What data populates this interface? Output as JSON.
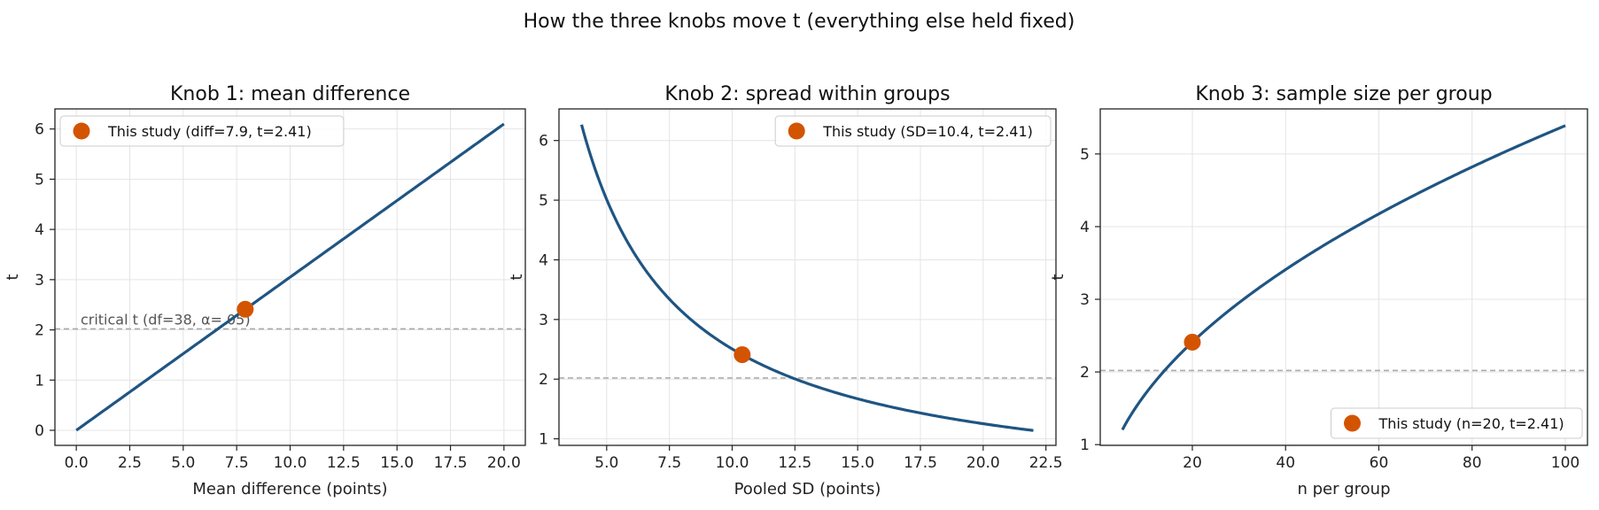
{
  "figure": {
    "suptitle": "How the three knobs move t (everything else held fixed)"
  },
  "colors": {
    "line": "#1f5582",
    "marker": "#d35400",
    "critical_line": "#aaaaaa",
    "grid": "#e4e4e4"
  },
  "chart_data": [
    {
      "type": "line",
      "title": "Knob 1: mean difference",
      "xlabel": "Mean difference (points)",
      "ylabel": "t",
      "xlim": [
        -1,
        21
      ],
      "ylim": [
        -0.3,
        6.4
      ],
      "xticks": [
        0,
        2.5,
        5,
        7.5,
        10,
        12.5,
        15,
        17.5,
        20
      ],
      "xtick_labels": [
        "0.0",
        "2.5",
        "5.0",
        "7.5",
        "10.0",
        "12.5",
        "15.0",
        "17.5",
        "20.0"
      ],
      "yticks": [
        0,
        1,
        2,
        3,
        4,
        5,
        6
      ],
      "ytick_labels": [
        "0",
        "1",
        "2",
        "3",
        "4",
        "5",
        "6"
      ],
      "grid": true,
      "curve": "t = diff * 0.305",
      "series": [
        {
          "x": [
            0,
            2.5,
            5,
            7.5,
            10,
            12.5,
            15,
            17.5,
            20
          ],
          "y": [
            0,
            0.76,
            1.53,
            2.29,
            3.05,
            3.81,
            4.58,
            5.34,
            6.1
          ]
        }
      ],
      "critical_t": 2.02,
      "critical_label": "critical t (df=38, α=.05)",
      "study_point": {
        "x": 7.9,
        "y": 2.41,
        "label": "This study (diff=7.9, t=2.41)"
      },
      "legend_position": "upper left"
    },
    {
      "type": "line",
      "title": "Knob 2: spread within groups",
      "xlabel": "Pooled SD (points)",
      "ylabel": "t",
      "xlim": [
        3.1,
        22.9
      ],
      "ylim": [
        0.89,
        6.53
      ],
      "xticks": [
        5,
        7.5,
        10,
        12.5,
        15,
        17.5,
        20,
        22.5
      ],
      "xtick_labels": [
        "5.0",
        "7.5",
        "10.0",
        "12.5",
        "15.0",
        "17.5",
        "20.0",
        "22.5"
      ],
      "yticks": [
        1,
        2,
        3,
        4,
        5,
        6
      ],
      "ytick_labels": [
        "1",
        "2",
        "3",
        "4",
        "5",
        "6"
      ],
      "grid": true,
      "curve": "t = 25.06 / SD",
      "series": [
        {
          "x": [
            4,
            5,
            6,
            7.5,
            10,
            12.5,
            15,
            17.5,
            20,
            22
          ],
          "y": [
            6.27,
            5.01,
            4.18,
            3.34,
            2.51,
            2.0,
            1.67,
            1.43,
            1.25,
            1.14
          ]
        }
      ],
      "critical_t": 2.02,
      "study_point": {
        "x": 10.4,
        "y": 2.41,
        "label": "This study (SD=10.4, t=2.41)"
      },
      "legend_position": "upper right"
    },
    {
      "type": "line",
      "title": "Knob 3: sample size per group",
      "xlabel": "n per group",
      "ylabel": "t",
      "xlim": [
        0.25,
        104.75
      ],
      "ylim": [
        0.99,
        5.62
      ],
      "xticks": [
        20,
        40,
        60,
        80,
        100
      ],
      "xtick_labels": [
        "20",
        "40",
        "60",
        "80",
        "100"
      ],
      "yticks": [
        1,
        2,
        3,
        4,
        5
      ],
      "ytick_labels": [
        "1",
        "2",
        "3",
        "4",
        "5"
      ],
      "grid": true,
      "curve": "t = 0.539 * sqrt(n)",
      "series": [
        {
          "x": [
            5,
            10,
            20,
            30,
            40,
            50,
            60,
            70,
            80,
            90,
            100
          ],
          "y": [
            1.21,
            1.7,
            2.41,
            2.95,
            3.41,
            3.81,
            4.17,
            4.51,
            4.82,
            5.11,
            5.39
          ]
        }
      ],
      "critical_t": 2.02,
      "study_point": {
        "x": 20,
        "y": 2.41,
        "label": "This study (n=20, t=2.41)"
      },
      "legend_position": "lower right"
    }
  ]
}
